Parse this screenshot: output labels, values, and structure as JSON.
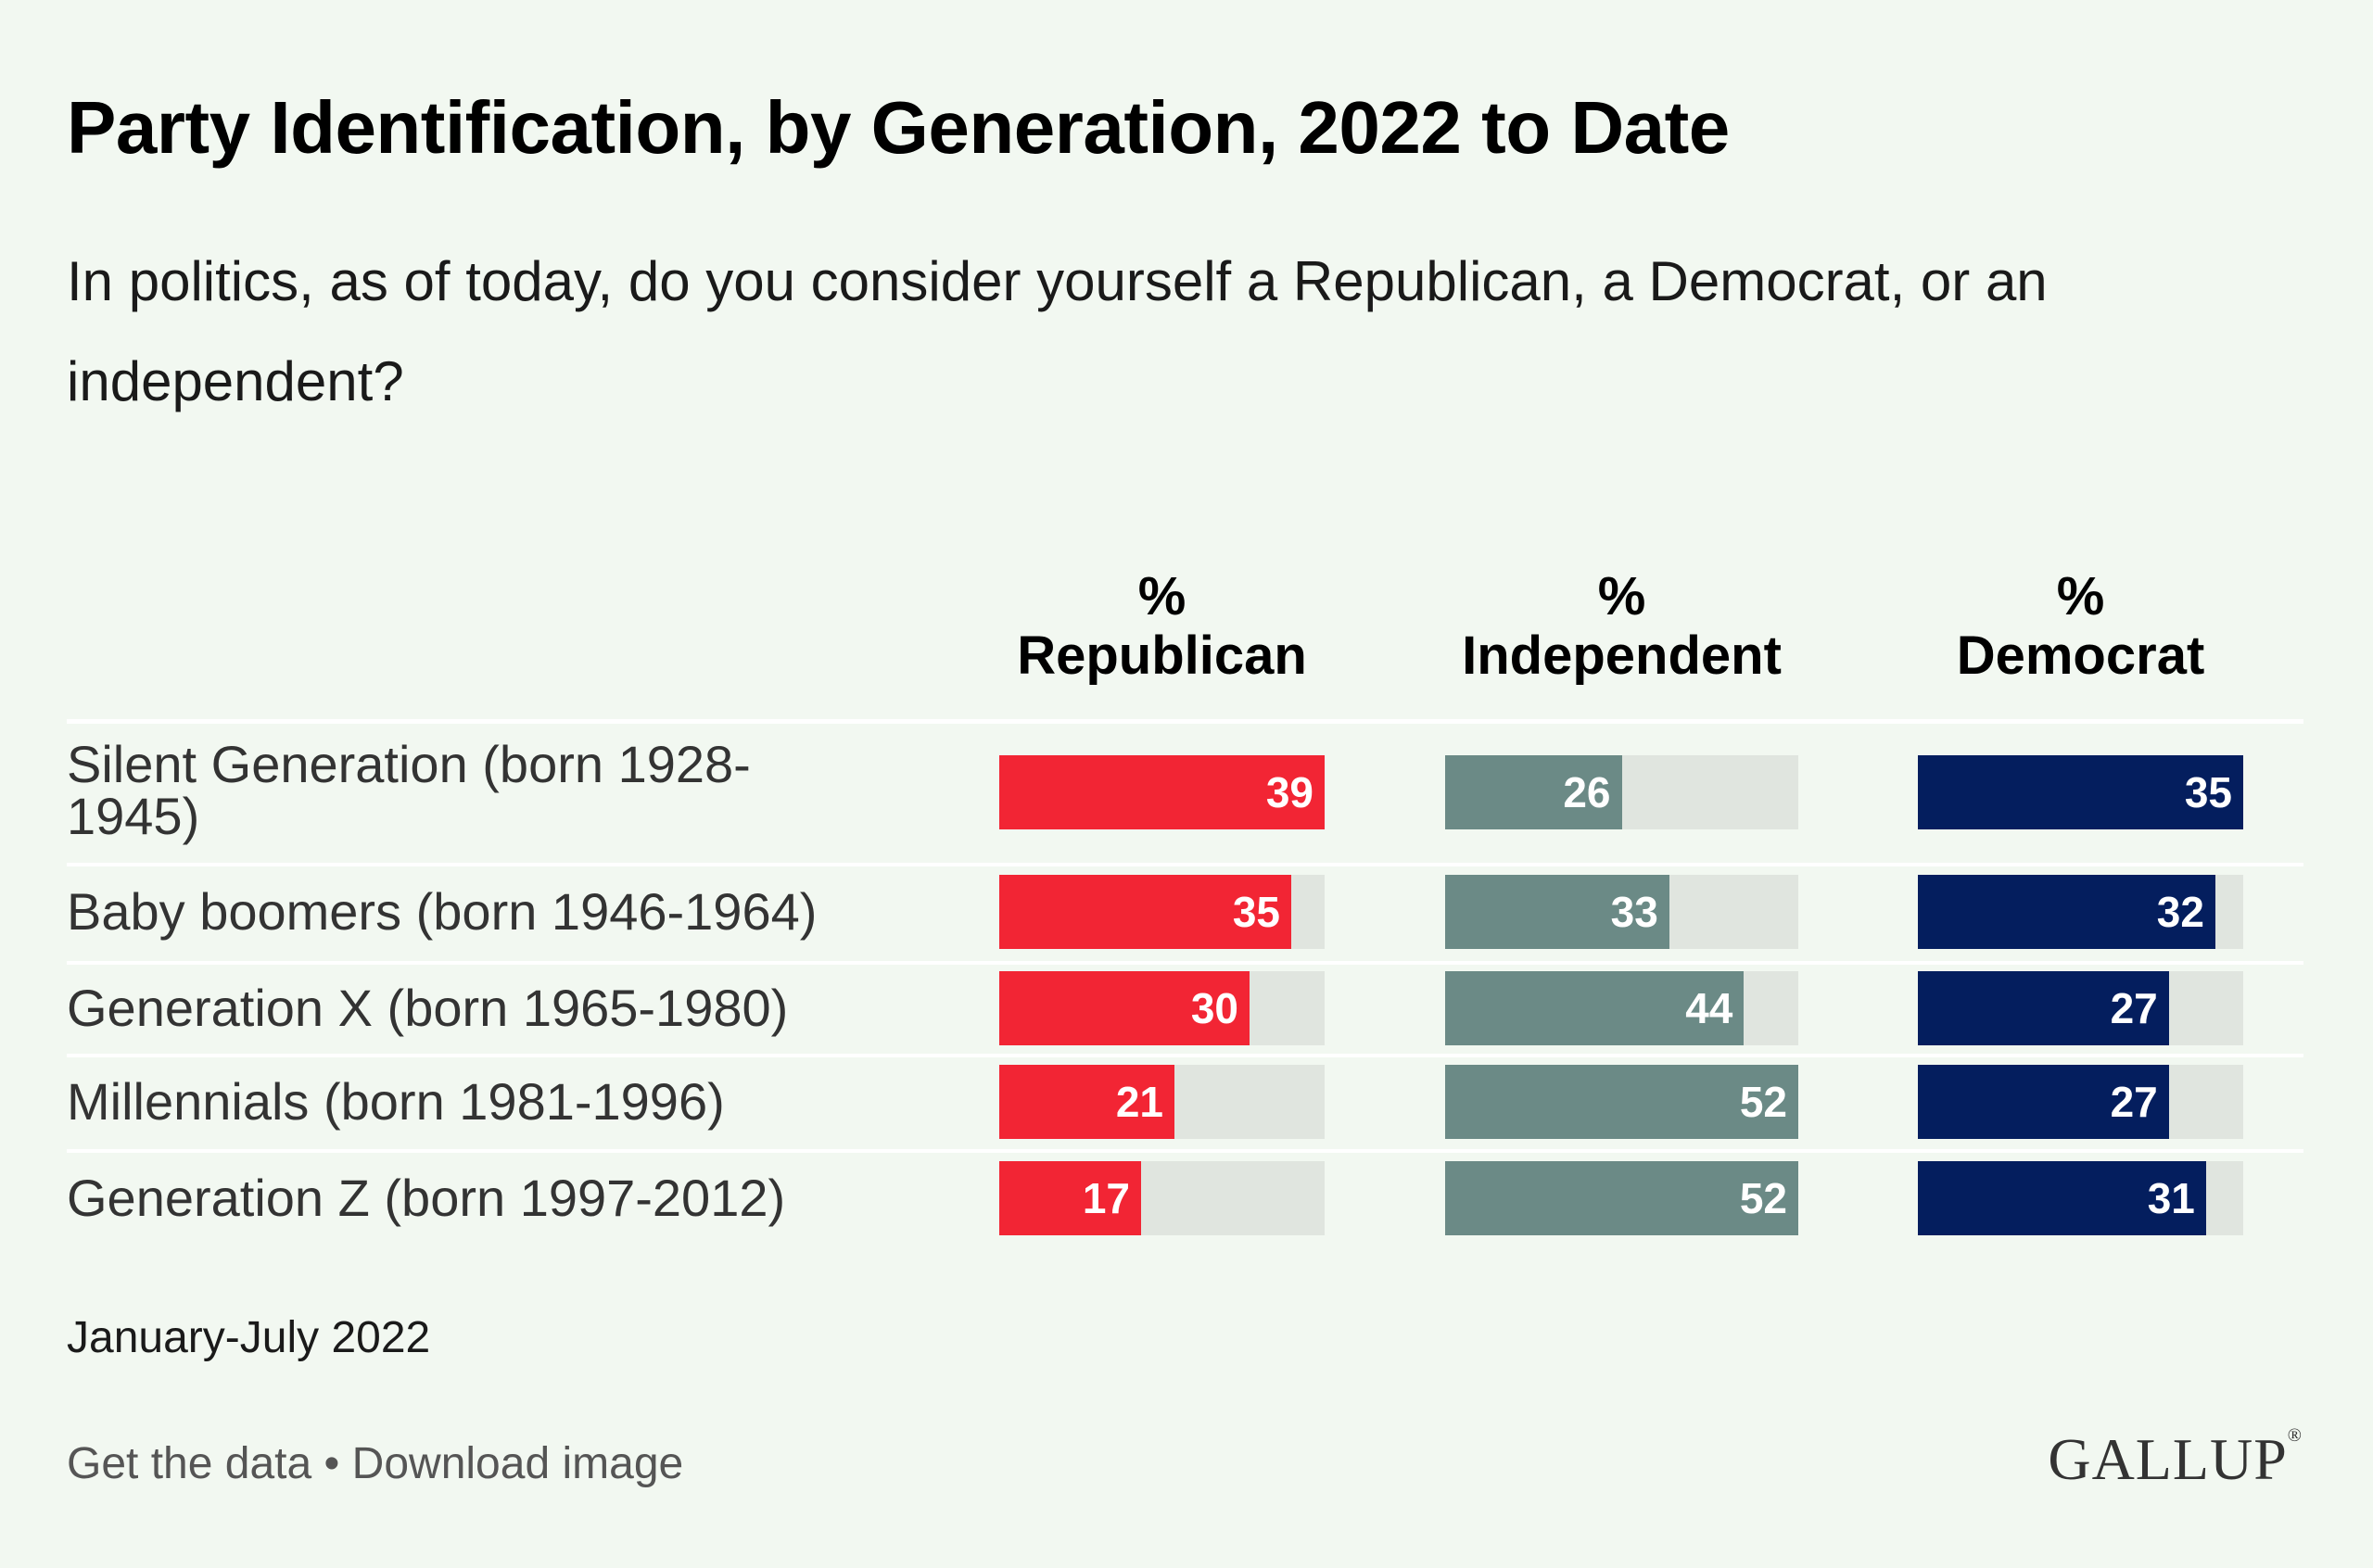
{
  "title": "Party Identification, by Generation, 2022 to Date",
  "subtitle": "In politics, as of today, do you consider yourself a Republican, a Democrat, or an independent?",
  "note": "January-July 2022",
  "links": {
    "get_data": "Get the data",
    "separator": " • ",
    "download": "Download image"
  },
  "logo": "GALLUP",
  "colors": {
    "republican": "#f22534",
    "independent": "#6b8a86",
    "democrat": "#041e5e",
    "track": "#e0e5df"
  },
  "chart_data": {
    "type": "table",
    "title": "Party Identification, by Generation, 2022 to Date",
    "categories": [
      "Silent Generation (born 1928-1945)",
      "Baby boomers (born 1946-1964)",
      "Generation X (born 1965-1980)",
      "Millennials (born 1981-1996)",
      "Generation Z (born 1997-2012)"
    ],
    "series": [
      {
        "name": "% Republican",
        "header_top": "%",
        "header_bottom": "Republican",
        "values": [
          39,
          35,
          30,
          21,
          17
        ],
        "color": "#f22534",
        "max": 39
      },
      {
        "name": "% Independent",
        "header_top": "%",
        "header_bottom": "Independent",
        "values": [
          26,
          33,
          44,
          52,
          52
        ],
        "color": "#6b8a86",
        "max": 52
      },
      {
        "name": "% Democrat",
        "header_top": "%",
        "header_bottom": "Democrat",
        "values": [
          35,
          32,
          27,
          27,
          31
        ],
        "color": "#041e5e",
        "max": 35
      }
    ]
  }
}
